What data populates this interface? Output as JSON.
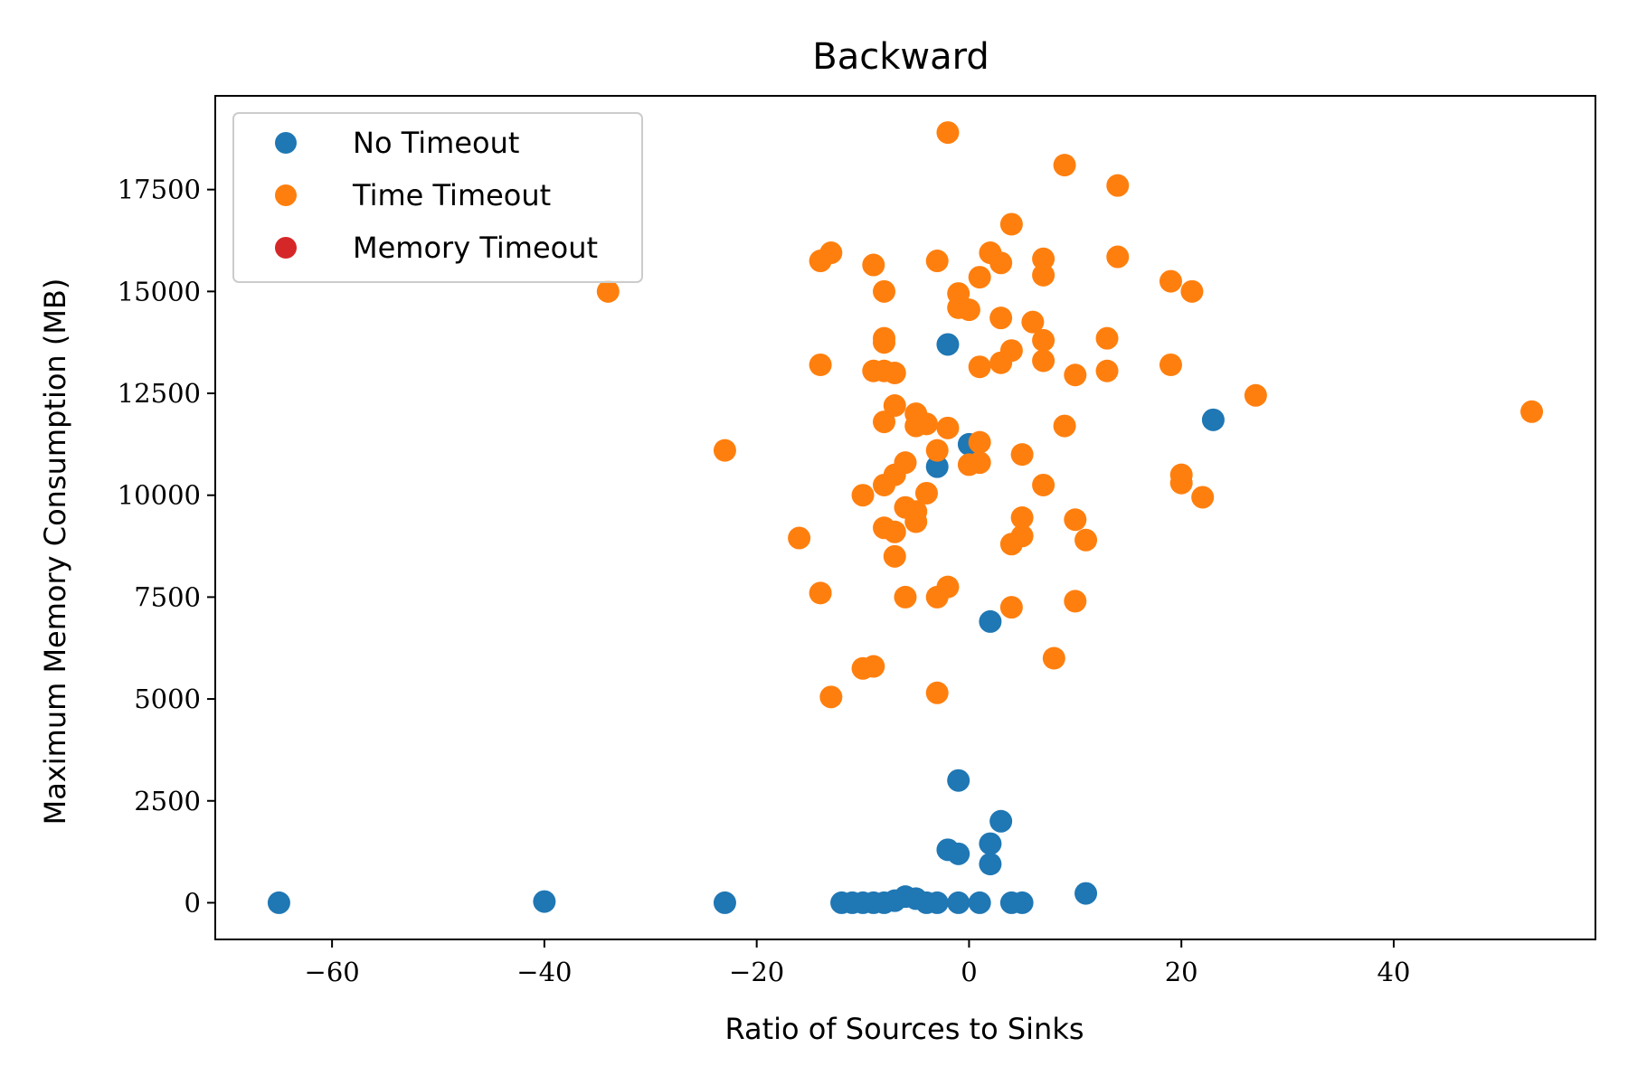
{
  "chart_data": {
    "type": "scatter",
    "title": "Backward",
    "xlabel": "Ratio of Sources to Sinks",
    "ylabel": "Maximum Memory Consumption (MB)",
    "xlim": [
      -71,
      59
    ],
    "ylim": [
      -900,
      19800
    ],
    "xticks": [
      -60,
      -40,
      -20,
      0,
      20,
      40
    ],
    "xtick_labels": [
      "−60",
      "−40",
      "−20",
      "0",
      "20",
      "40"
    ],
    "yticks": [
      0,
      2500,
      5000,
      7500,
      10000,
      12500,
      15000,
      17500
    ],
    "ytick_labels": [
      "0",
      "2500",
      "5000",
      "7500",
      "10000",
      "12500",
      "15000",
      "17500"
    ],
    "grid": false,
    "legend_position": "top-left",
    "series": [
      {
        "name": "No Timeout",
        "color": "#1f77b4",
        "points": [
          [
            -65,
            0
          ],
          [
            -40,
            30
          ],
          [
            -23,
            0
          ],
          [
            -12,
            0
          ],
          [
            -11,
            0
          ],
          [
            -10,
            0
          ],
          [
            -9,
            0
          ],
          [
            -8,
            0
          ],
          [
            -7,
            50
          ],
          [
            -6,
            150
          ],
          [
            -5,
            100
          ],
          [
            -4,
            0
          ],
          [
            -3,
            0
          ],
          [
            -1,
            0
          ],
          [
            1,
            0
          ],
          [
            4,
            0
          ],
          [
            5,
            0
          ],
          [
            11,
            230
          ],
          [
            -2,
            1300
          ],
          [
            -1,
            1200
          ],
          [
            2,
            1450
          ],
          [
            2,
            950
          ],
          [
            3,
            2000
          ],
          [
            -1,
            3000
          ],
          [
            2,
            6900
          ],
          [
            -3,
            10700
          ],
          [
            0,
            11250
          ],
          [
            -2,
            13700
          ],
          [
            23,
            11850
          ]
        ]
      },
      {
        "name": "Time Timeout",
        "color": "#ff7f0e",
        "points": [
          [
            -34,
            15000
          ],
          [
            -23,
            11100
          ],
          [
            -16,
            8950
          ],
          [
            -14,
            15750
          ],
          [
            -13,
            15950
          ],
          [
            -14,
            13200
          ],
          [
            -14,
            7600
          ],
          [
            -13,
            5050
          ],
          [
            -10,
            10000
          ],
          [
            -10,
            5750
          ],
          [
            -9,
            5800
          ],
          [
            -9,
            15650
          ],
          [
            -9,
            13050
          ],
          [
            -8,
            13750
          ],
          [
            -8,
            13850
          ],
          [
            -8,
            13050
          ],
          [
            -8,
            15000
          ],
          [
            -8,
            11800
          ],
          [
            -8,
            10250
          ],
          [
            -8,
            9200
          ],
          [
            -7,
            13000
          ],
          [
            -7,
            12200
          ],
          [
            -7,
            10500
          ],
          [
            -7,
            9100
          ],
          [
            -7,
            8500
          ],
          [
            -6,
            10800
          ],
          [
            -6,
            9700
          ],
          [
            -6,
            7500
          ],
          [
            -5,
            12000
          ],
          [
            -5,
            11700
          ],
          [
            -5,
            9350
          ],
          [
            -5,
            9600
          ],
          [
            -4,
            11750
          ],
          [
            -4,
            10050
          ],
          [
            -3,
            15750
          ],
          [
            -3,
            11100
          ],
          [
            -3,
            7500
          ],
          [
            -3,
            5150
          ],
          [
            -2,
            18900
          ],
          [
            -2,
            11650
          ],
          [
            -2,
            7750
          ],
          [
            -1,
            14950
          ],
          [
            -1,
            14600
          ],
          [
            0,
            14550
          ],
          [
            0,
            10750
          ],
          [
            1,
            15350
          ],
          [
            1,
            13150
          ],
          [
            1,
            11300
          ],
          [
            1,
            10800
          ],
          [
            2,
            15950
          ],
          [
            3,
            15700
          ],
          [
            3,
            14350
          ],
          [
            3,
            13250
          ],
          [
            4,
            16650
          ],
          [
            4,
            13550
          ],
          [
            4,
            8800
          ],
          [
            4,
            7250
          ],
          [
            5,
            11000
          ],
          [
            5,
            9450
          ],
          [
            5,
            9000
          ],
          [
            6,
            14250
          ],
          [
            7,
            15800
          ],
          [
            7,
            15400
          ],
          [
            7,
            13800
          ],
          [
            7,
            13300
          ],
          [
            7,
            10250
          ],
          [
            8,
            6000
          ],
          [
            9,
            18100
          ],
          [
            9,
            11700
          ],
          [
            10,
            12950
          ],
          [
            10,
            9400
          ],
          [
            10,
            7400
          ],
          [
            11,
            8900
          ],
          [
            13,
            13850
          ],
          [
            13,
            13050
          ],
          [
            14,
            17600
          ],
          [
            14,
            15850
          ],
          [
            19,
            15250
          ],
          [
            19,
            13200
          ],
          [
            20,
            10500
          ],
          [
            20,
            10300
          ],
          [
            21,
            15000
          ],
          [
            22,
            9950
          ],
          [
            27,
            12450
          ],
          [
            53,
            12050
          ]
        ]
      },
      {
        "name": "Memory Timeout",
        "color": "#d62728",
        "points": []
      }
    ]
  }
}
